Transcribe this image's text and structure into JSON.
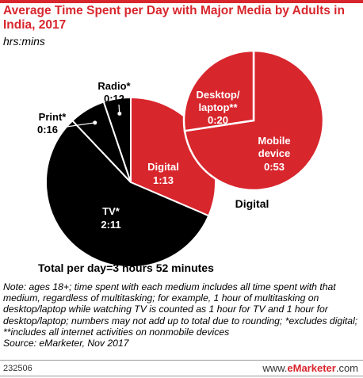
{
  "title": "Average Time Spent per Day with Major Media by Adults in India, 2017",
  "subtitle": "hrs:mins",
  "chart_data": {
    "type": "pie",
    "unit": "hrs:mins",
    "main_pie": {
      "slices": [
        {
          "label": "Digital",
          "value": "1:13",
          "minutes": 73,
          "color": "#d8262d"
        },
        {
          "label": "TV*",
          "value": "2:11",
          "minutes": 131,
          "color": "#000000"
        },
        {
          "label": "Print*",
          "value": "0:16",
          "minutes": 16,
          "color": "#000000"
        },
        {
          "label": "Radio*",
          "value": "0:12",
          "minutes": 12,
          "color": "#000000"
        }
      ]
    },
    "digital_pie": {
      "label": "Digital",
      "slices": [
        {
          "label": "Mobile device",
          "value": "0:53",
          "minutes": 53,
          "color": "#d8262d"
        },
        {
          "label": "Desktop/ laptop**",
          "value": "0:20",
          "minutes": 20,
          "color": "#d8262d"
        }
      ]
    },
    "total": "Total per day=3 hours 52 minutes"
  },
  "note": "Note: ages 18+; time spent with each medium includes all time spent with that medium, regardless of multitasking; for example, 1 hour of multitasking on desktop/laptop while watching TV is counted as 1 hour for TV and 1 hour for desktop/laptop; numbers may not add up to total due to rounding; *excludes digital; **includes all internet activities on nonmobile devices",
  "source": "Source: eMarketer, Nov 2017",
  "footer": {
    "chart_id": "232506",
    "brand_prefix": "www.",
    "brand_name": "eMarketer",
    "brand_suffix": ".com"
  }
}
